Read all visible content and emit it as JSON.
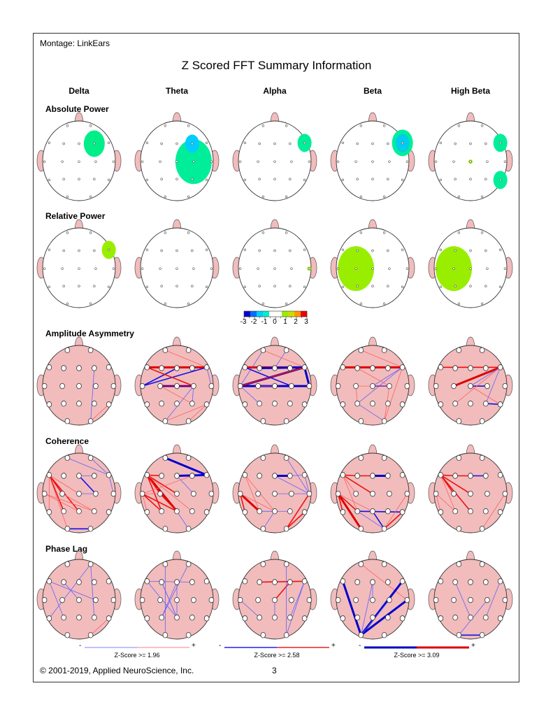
{
  "montage": "Montage:  LinkEars",
  "title": "Z Scored FFT Summary Information",
  "bands": [
    "Delta",
    "Theta",
    "Alpha",
    "Beta",
    "High Beta"
  ],
  "rows": [
    {
      "label": "Absolute Power",
      "type": "power",
      "maps": [
        [
          {
            "site": "F4",
            "color": "#00ee88",
            "size": "medium"
          }
        ],
        [
          {
            "site": "C4",
            "color": "#00ee99",
            "size": "large"
          },
          {
            "site": "F4",
            "color": "#00ccff",
            "size": "small"
          }
        ],
        [
          {
            "site": "F8",
            "color": "#00ee99",
            "size": "small"
          }
        ],
        [
          {
            "site": "F8",
            "color": "#00ee99",
            "size": "medium"
          },
          {
            "site": "F8",
            "color": "#00ccee",
            "size": "small"
          }
        ],
        [
          {
            "site": "F8",
            "color": "#00ee99",
            "size": "small"
          },
          {
            "site": "T6",
            "color": "#00ee99",
            "size": "small"
          },
          {
            "site": "Cz",
            "color": "#99ee00",
            "size": "dot"
          }
        ]
      ]
    },
    {
      "label": "Relative Power",
      "type": "power",
      "maps": [
        [
          {
            "site": "F8",
            "color": "#99ee00",
            "size": "small"
          }
        ],
        [],
        [
          {
            "site": "T4",
            "color": "#99ee00",
            "size": "dot"
          }
        ],
        [
          {
            "site": "C3",
            "color": "#99ee00",
            "size": "large"
          }
        ],
        [
          {
            "site": "C3",
            "color": "#99ee00",
            "size": "large"
          }
        ]
      ]
    },
    {
      "label": "Amplitude Asymmetry",
      "type": "connect",
      "maps": [
        [
          [
            "F4",
            "O2",
            "-",
            1
          ],
          [
            "O2",
            "T6",
            "+",
            1
          ]
        ],
        [
          [
            "F7",
            "F8",
            "+",
            3
          ],
          [
            "Fp1",
            "F8",
            "+",
            1
          ],
          [
            "T3",
            "F8",
            "-",
            2
          ],
          [
            "T3",
            "Fz",
            "-",
            2
          ],
          [
            "C3",
            "C4",
            "+",
            3
          ],
          [
            "C3",
            "C4",
            "-",
            2
          ],
          [
            "F8",
            "T4",
            "-",
            1
          ],
          [
            "F7",
            "C4",
            "+",
            2
          ],
          [
            "C4",
            "O1",
            "-",
            1
          ],
          [
            "C4",
            "P4",
            "-",
            1
          ],
          [
            "O1",
            "T6",
            "+",
            1
          ],
          [
            "O2",
            "T6",
            "+",
            1
          ],
          [
            "C3",
            "P4",
            "+",
            1
          ]
        ],
        [
          [
            "F7",
            "F8",
            "+",
            3
          ],
          [
            "F3",
            "F8",
            "-",
            3
          ],
          [
            "T3",
            "F8",
            "-",
            3
          ],
          [
            "T3",
            "C4",
            "-",
            3
          ],
          [
            "T3",
            "F8",
            "+",
            2
          ],
          [
            "F8",
            "T4",
            "-",
            3
          ],
          [
            "C4",
            "T4",
            "-",
            3
          ],
          [
            "Fp1",
            "T3",
            "-",
            1
          ],
          [
            "Fp2",
            "Fz",
            "-",
            1
          ],
          [
            "Fp1",
            "F8",
            "+",
            1
          ],
          [
            "T3",
            "P3",
            "-",
            1
          ],
          [
            "C3",
            "Cz",
            "+",
            1
          ],
          [
            "F7",
            "C4",
            "-",
            2
          ]
        ],
        [
          [
            "F7",
            "F8",
            "+",
            3
          ],
          [
            "Fp1",
            "F8",
            "+",
            1
          ],
          [
            "F8",
            "Cz",
            "-",
            1
          ],
          [
            "F8",
            "P3",
            "-",
            1
          ],
          [
            "F8",
            "O2",
            "+",
            1
          ],
          [
            "C3",
            "P3",
            "+",
            1
          ],
          [
            "P3",
            "O2",
            "-",
            1
          ],
          [
            "Cz",
            "C4",
            "-",
            2
          ],
          [
            "C4",
            "O2",
            "+",
            1
          ],
          [
            "F3",
            "C4",
            "+",
            1
          ],
          [
            "C3",
            "C4",
            "+",
            1
          ]
        ],
        [
          [
            "F7",
            "F8",
            "+",
            2
          ],
          [
            "C3",
            "F8",
            "+",
            3
          ],
          [
            "F8",
            "Cz",
            "-",
            1
          ],
          [
            "F8",
            "P4",
            "-",
            1
          ],
          [
            "Cz",
            "C4",
            "-",
            2
          ],
          [
            "P4",
            "T6",
            "-",
            2
          ],
          [
            "P3",
            "F8",
            "+",
            1
          ],
          [
            "Cz",
            "T6",
            "+",
            1
          ]
        ]
      ]
    },
    {
      "label": "Coherence",
      "type": "connect",
      "maps": [
        [
          [
            "Fp1",
            "F8",
            "-",
            1
          ],
          [
            "Fp2",
            "F8",
            "-",
            1
          ],
          [
            "Fz",
            "F4",
            "-",
            1
          ],
          [
            "Fz",
            "C4",
            "-",
            2
          ],
          [
            "C4",
            "Cz",
            "-",
            1
          ],
          [
            "F8",
            "T4",
            "-",
            1
          ],
          [
            "O1",
            "O2",
            "-",
            2
          ],
          [
            "F7",
            "Pz",
            "+",
            2
          ],
          [
            "F7",
            "P3",
            "+",
            2
          ],
          [
            "F7",
            "C3",
            "+",
            2
          ],
          [
            "F7",
            "O1",
            "+",
            1
          ],
          [
            "F7",
            "T5",
            "+",
            1
          ],
          [
            "T3",
            "Pz",
            "+",
            1
          ],
          [
            "T3",
            "P4",
            "+",
            1
          ],
          [
            "C3",
            "P4",
            "+",
            1
          ],
          [
            "F7",
            "Cz",
            "+",
            1
          ]
        ],
        [
          [
            "Fp1",
            "F8",
            "-",
            3
          ],
          [
            "Fz",
            "F8",
            "-",
            3
          ],
          [
            "F4",
            "F8",
            "-",
            2
          ],
          [
            "Fz",
            "C4",
            "-",
            1
          ],
          [
            "Pz",
            "O2",
            "-",
            1
          ],
          [
            "F7",
            "F3",
            "+",
            2
          ],
          [
            "F7",
            "P3",
            "+",
            2
          ],
          [
            "F7",
            "Pz",
            "+",
            3
          ],
          [
            "F7",
            "C3",
            "+",
            2
          ],
          [
            "F7",
            "Cz",
            "+",
            2
          ],
          [
            "T3",
            "P3",
            "+",
            2
          ],
          [
            "T3",
            "Pz",
            "+",
            2
          ],
          [
            "T3",
            "T5",
            "+",
            1
          ],
          [
            "C3",
            "Pz",
            "+",
            2
          ],
          [
            "F7",
            "P4",
            "+",
            1
          ],
          [
            "T3",
            "F4",
            "+",
            1
          ],
          [
            "T3",
            "C3",
            "+",
            1
          ]
        ],
        [
          [
            "Fz",
            "F4",
            "-",
            3
          ],
          [
            "F4",
            "F8",
            "-",
            1
          ],
          [
            "Fz",
            "T4",
            "-",
            1
          ],
          [
            "Fp2",
            "T4",
            "-",
            1
          ],
          [
            "F8",
            "T4",
            "-",
            1
          ],
          [
            "Cz",
            "T4",
            "-",
            1
          ],
          [
            "P3",
            "Pz",
            "-",
            1
          ],
          [
            "P3",
            "P4",
            "-",
            1
          ],
          [
            "Pz",
            "O1",
            "-",
            1
          ],
          [
            "F7",
            "P3",
            "+",
            1
          ],
          [
            "F7",
            "Pz",
            "+",
            1
          ],
          [
            "T3",
            "P3",
            "+",
            3
          ],
          [
            "T3",
            "T5",
            "+",
            2
          ],
          [
            "O2",
            "T4",
            "+",
            2
          ],
          [
            "O2",
            "T6",
            "+",
            2
          ],
          [
            "T3",
            "Pz",
            "+",
            1
          ]
        ],
        [
          [
            "F7",
            "F3",
            "+",
            2
          ],
          [
            "Fz",
            "F4",
            "-",
            3
          ],
          [
            "F3",
            "Fz",
            "+",
            2
          ],
          [
            "F7",
            "Cz",
            "+",
            2
          ],
          [
            "F7",
            "C3",
            "+",
            1
          ],
          [
            "F7",
            "P3",
            "+",
            1
          ],
          [
            "T3",
            "O1",
            "+",
            3
          ],
          [
            "T3",
            "T5",
            "+",
            2
          ],
          [
            "T3",
            "P3",
            "+",
            2
          ],
          [
            "T3",
            "Pz",
            "+",
            1
          ],
          [
            "P3",
            "T6",
            "-",
            2
          ],
          [
            "Pz",
            "O2",
            "-",
            2
          ],
          [
            "P3",
            "O2",
            "-",
            1
          ],
          [
            "O2",
            "T6",
            "+",
            2
          ],
          [
            "O2",
            "T4",
            "+",
            1
          ]
        ],
        [
          [
            "F7",
            "F3",
            "+",
            2
          ],
          [
            "F3",
            "Fz",
            "+",
            2
          ],
          [
            "Fz",
            "F4",
            "-",
            2
          ],
          [
            "F7",
            "C3",
            "+",
            2
          ],
          [
            "F7",
            "Cz",
            "+",
            2
          ],
          [
            "F7",
            "P3",
            "+",
            1
          ],
          [
            "F7",
            "Pz",
            "+",
            2
          ],
          [
            "T3",
            "P3",
            "+",
            1
          ],
          [
            "T3",
            "T5",
            "+",
            1
          ],
          [
            "O2",
            "T4",
            "+",
            1
          ]
        ]
      ]
    },
    {
      "label": "Phase Lag",
      "type": "connect",
      "maps": [
        [
          [
            "Fp2",
            "T5",
            "-",
            1
          ],
          [
            "Fp2",
            "P4",
            "-",
            1
          ],
          [
            "F7",
            "C4",
            "-",
            1
          ],
          [
            "F7",
            "P3",
            "-",
            1
          ],
          [
            "F3",
            "Cz",
            "-",
            1
          ],
          [
            "O2",
            "T6",
            "+",
            1
          ]
        ],
        [
          [
            "Fp1",
            "O1",
            "-",
            1
          ],
          [
            "Fp2",
            "P3",
            "-",
            1
          ],
          [
            "F7",
            "F4",
            "-",
            1
          ],
          [
            "F3",
            "Pz",
            "-",
            1
          ],
          [
            "F7",
            "Pz",
            "-",
            1
          ],
          [
            "Fz",
            "P3",
            "-",
            1
          ],
          [
            "F3",
            "Pz",
            "-",
            1
          ],
          [
            "Fz",
            "Pz",
            "-",
            1
          ]
        ],
        [
          [
            "F3",
            "F8",
            "+",
            2
          ],
          [
            "Cz",
            "F4",
            "+",
            2
          ],
          [
            "Cz",
            "Pz",
            "-",
            1
          ],
          [
            "Fp2",
            "O2",
            "-",
            1
          ],
          [
            "F8",
            "O2",
            "-",
            1
          ],
          [
            "T3",
            "P3",
            "-",
            1
          ],
          [
            "F8",
            "P4",
            "-",
            1
          ]
        ],
        [
          [
            "Fp1",
            "T4",
            "+",
            1
          ],
          [
            "F7",
            "O1",
            "-",
            3
          ],
          [
            "O1",
            "F8",
            "-",
            3
          ],
          [
            "O1",
            "T4",
            "-",
            3
          ],
          [
            "O1",
            "Fz",
            "-",
            1
          ],
          [
            "Fz",
            "Cz",
            "-",
            1
          ],
          [
            "O1",
            "C4",
            "-",
            1
          ]
        ],
        [
          [
            "F3",
            "Pz",
            "-",
            1
          ],
          [
            "F8",
            "P4",
            "-",
            1
          ],
          [
            "O1",
            "C4",
            "-",
            1
          ],
          [
            "O1",
            "O2",
            "-",
            2
          ]
        ]
      ]
    }
  ],
  "colorbar": {
    "ticks": [
      "-3",
      "-2",
      "-1",
      "0",
      "1",
      "2",
      "3"
    ],
    "colors": [
      "#0000cc",
      "#0070ff",
      "#00ccff",
      "#00eecc",
      "#ffffff",
      "#ffffff",
      "#99ee00",
      "#ccdd00",
      "#ff9900",
      "#ee0000"
    ]
  },
  "legend": [
    {
      "label": "Z-Score >= 1.96",
      "minus": "-",
      "plus": "+",
      "neg_color": "#8080ff",
      "pos_color": "#ff8080",
      "weight": 1
    },
    {
      "label": "Z-Score >= 2.58",
      "minus": "-",
      "plus": "+",
      "neg_color": "#2020ee",
      "pos_color": "#ee2020",
      "weight": 2
    },
    {
      "label": "Z-Score >= 3.09",
      "minus": "-",
      "plus": "+",
      "neg_color": "#0000bb",
      "pos_color": "#dd0000",
      "weight": 3
    }
  ],
  "footer": "© 2001-2019, Applied NeuroScience, Inc.",
  "page_number": "3"
}
